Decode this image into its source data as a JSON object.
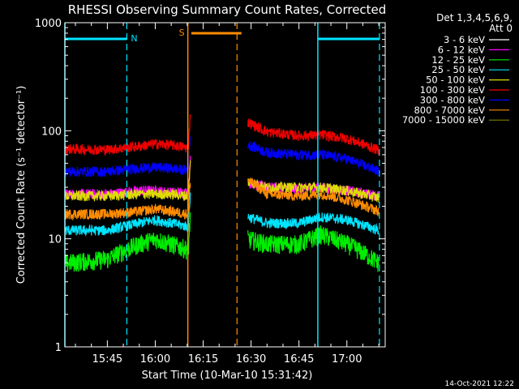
{
  "colors": {
    "background": "#000000",
    "axes": "#ffffff",
    "orbit_marker": "#00e5ff",
    "saa_marker": "#ff8c00"
  },
  "chart_data": {
    "type": "line",
    "title": "RHESSI Observing Summary Count Rates, Corrected",
    "xlabel": "Start Time (10-Mar-10 15:31:42)",
    "ylabel": "Corrected Count Rate (s⁻¹ detector⁻¹)",
    "y_scale": "log",
    "ylim": [
      1,
      1000
    ],
    "xlim": [
      "15:31:42",
      "17:12:00"
    ],
    "x_ticks": [
      "15:45",
      "16:00",
      "16:15",
      "16:30",
      "16:45",
      "17:00"
    ],
    "y_ticks": [
      "1",
      "10",
      "100",
      "1000"
    ],
    "grid": false,
    "legend_header": [
      "Det 1,3,4,5,6,9,",
      "Att 0"
    ],
    "legend_position": "top-right",
    "footer_date": "14-Oct-2021 12:22",
    "markers": {
      "night_label": "N",
      "saa_label": "S",
      "solid_lines": [
        "15:31:42",
        "16:10:12",
        "16:50:54"
      ],
      "dashed_lines": [
        "15:51:06",
        "16:25:36",
        "17:10:12"
      ],
      "night_bars": [
        [
          "15:31:42",
          "15:51:06"
        ],
        [
          "16:50:54",
          "17:10:12"
        ]
      ],
      "saa_bar": [
        "16:11:18",
        "16:27:00"
      ]
    },
    "gap": [
      "16:11:00",
      "16:29:00"
    ],
    "series": [
      {
        "name": "3 - 6 keV",
        "color": "#000000",
        "x": [
          "15:31:42",
          "15:45:00",
          "15:55:00",
          "16:00:00",
          "16:05:00",
          "16:10:00",
          "16:29:00",
          "16:35:00",
          "16:45:00",
          "16:52:00",
          "17:00:00",
          "17:10:00"
        ],
        "values": [
          20,
          20,
          22,
          22,
          21,
          21,
          26,
          24,
          24,
          24,
          22,
          19
        ]
      },
      {
        "name": "6 - 12 keV",
        "color": "#ff00ff",
        "x": [
          "15:31:42",
          "15:45:00",
          "15:55:00",
          "16:00:00",
          "16:05:00",
          "16:10:00",
          "16:29:00",
          "16:35:00",
          "16:45:00",
          "16:52:00",
          "17:00:00",
          "17:10:00"
        ],
        "values": [
          26,
          26,
          28,
          28,
          27,
          27,
          33,
          30,
          29,
          30,
          28,
          25
        ]
      },
      {
        "name": "12 - 25 keV",
        "color": "#00ee00",
        "x": [
          "15:31:42",
          "15:45:00",
          "15:55:00",
          "16:00:00",
          "16:05:00",
          "16:10:00",
          "16:29:00",
          "16:35:00",
          "16:45:00",
          "16:52:00",
          "17:00:00",
          "17:10:00"
        ],
        "values": [
          6,
          6.5,
          9,
          10,
          9,
          8,
          10,
          9,
          9,
          11,
          9,
          6
        ]
      },
      {
        "name": "25 - 50 keV",
        "color": "#00e5ff",
        "x": [
          "15:31:42",
          "15:45:00",
          "15:55:00",
          "16:00:00",
          "16:05:00",
          "16:10:00",
          "16:29:00",
          "16:35:00",
          "16:45:00",
          "16:52:00",
          "17:00:00",
          "17:10:00"
        ],
        "values": [
          12,
          12,
          14,
          15,
          14,
          13,
          16,
          14,
          14,
          16,
          15,
          12
        ]
      },
      {
        "name": "50 - 100 keV",
        "color": "#dddd00",
        "x": [
          "15:31:42",
          "15:45:00",
          "15:55:00",
          "16:00:00",
          "16:05:00",
          "16:10:00",
          "16:29:00",
          "16:35:00",
          "16:45:00",
          "16:52:00",
          "17:00:00",
          "17:10:00"
        ],
        "values": [
          25,
          25,
          26,
          26,
          26,
          25,
          34,
          30,
          30,
          30,
          28,
          24
        ]
      },
      {
        "name": "100 - 300 keV",
        "color": "#ee0000",
        "x": [
          "15:31:42",
          "15:45:00",
          "15:55:00",
          "16:00:00",
          "16:05:00",
          "16:10:00",
          "16:29:00",
          "16:35:00",
          "16:45:00",
          "16:52:00",
          "17:00:00",
          "17:10:00"
        ],
        "values": [
          68,
          67,
          72,
          76,
          74,
          70,
          120,
          98,
          90,
          92,
          85,
          66
        ]
      },
      {
        "name": "300 - 800 keV",
        "color": "#0000ff",
        "x": [
          "15:31:42",
          "15:45:00",
          "15:55:00",
          "16:00:00",
          "16:05:00",
          "16:10:00",
          "16:29:00",
          "16:35:00",
          "16:45:00",
          "16:52:00",
          "17:00:00",
          "17:10:00"
        ],
        "values": [
          42,
          42,
          45,
          46,
          45,
          43,
          75,
          63,
          60,
          60,
          55,
          42
        ]
      },
      {
        "name": "800 - 7000 keV",
        "color": "#ff8c00",
        "x": [
          "15:31:42",
          "15:45:00",
          "15:55:00",
          "16:00:00",
          "16:05:00",
          "16:10:00",
          "16:29:00",
          "16:35:00",
          "16:45:00",
          "16:52:00",
          "17:00:00",
          "17:10:00"
        ],
        "values": [
          17,
          17,
          18,
          19,
          18,
          17,
          35,
          26,
          25,
          26,
          23,
          18
        ]
      },
      {
        "name": "7000 - 15000 keV",
        "color": "#808000",
        "x": [],
        "values": []
      }
    ]
  }
}
